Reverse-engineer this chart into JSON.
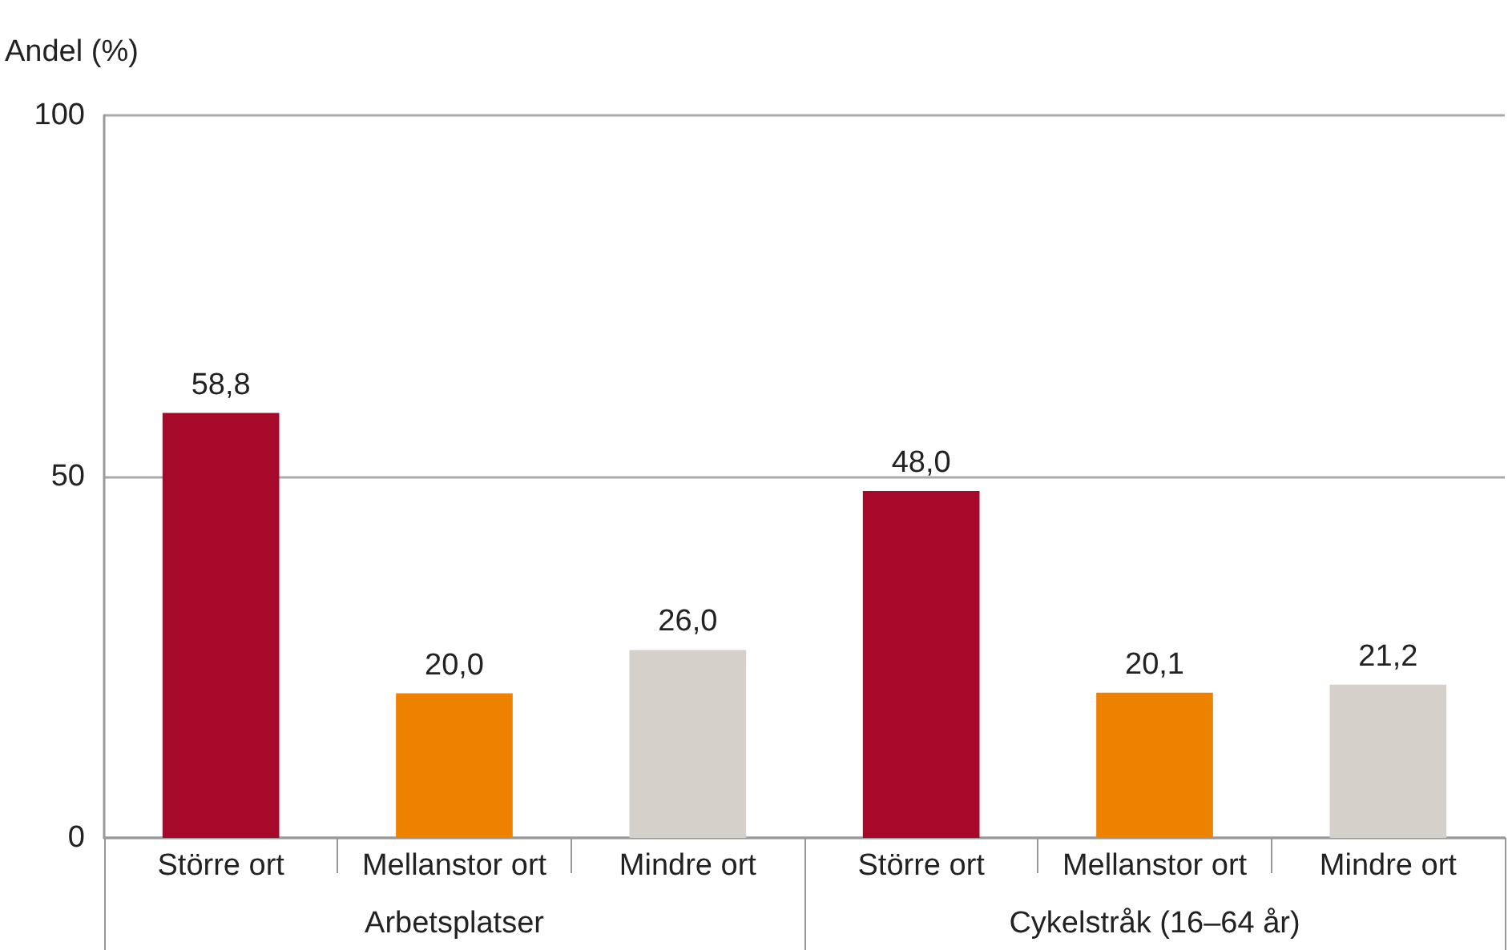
{
  "chart_data": {
    "type": "bar",
    "ylabel": "Andel (%)",
    "categories": [
      "Större ort",
      "Mellanstor ort",
      "Mindre ort",
      "Större ort",
      "Mellanstor ort",
      "Mindre ort"
    ],
    "values": [
      58.8,
      20.0,
      26.0,
      48.0,
      20.1,
      21.2
    ],
    "colors": [
      "#a6092a",
      "#ee8100",
      "#d5d0ca",
      "#a6092a",
      "#ee8100",
      "#d5d0ca"
    ],
    "value_labels": [
      "58,8",
      "20,0",
      "26,0",
      "48,0",
      "20,1",
      "21,2"
    ],
    "annotations": [
      "Arbetsplatser",
      "Cykelstråk (16–64 år)"
    ],
    "ylim": [
      0,
      100
    ],
    "yticks": [
      0,
      50,
      100
    ],
    "grid": "y"
  }
}
